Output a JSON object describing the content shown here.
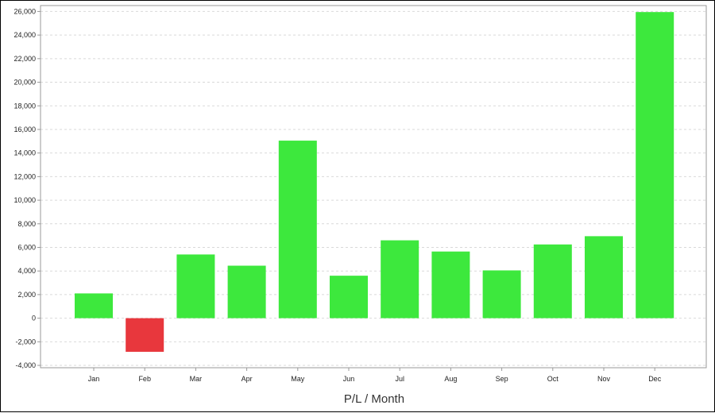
{
  "chart_data": {
    "type": "bar",
    "title": "",
    "xlabel": "P/L / Month",
    "ylabel": "",
    "categories": [
      "Jan",
      "Feb",
      "Mar",
      "Apr",
      "May",
      "Jun",
      "Jul",
      "Aug",
      "Sep",
      "Oct",
      "Nov",
      "Dec"
    ],
    "values": [
      2100,
      -2850,
      5400,
      4450,
      15050,
      3600,
      6600,
      5650,
      4050,
      6250,
      6950,
      25950
    ],
    "ylim": [
      -4200,
      26500
    ],
    "yticks": [
      -4000,
      -2000,
      0,
      2000,
      4000,
      6000,
      8000,
      10000,
      12000,
      14000,
      16000,
      18000,
      20000,
      22000,
      24000,
      26000
    ],
    "ytick_labels": [
      "-4,000",
      "-2,000",
      "0",
      "2,000",
      "4,000",
      "6,000",
      "8,000",
      "10,000",
      "12,000",
      "14,000",
      "16,000",
      "18,000",
      "20,000",
      "22,000",
      "24,000",
      "26,000"
    ],
    "grid": true,
    "legend": "none",
    "colors": {
      "positive": "#3de83d",
      "negative": "#e8373d",
      "grid": "#d9d9d9",
      "axis": "#999999"
    }
  }
}
